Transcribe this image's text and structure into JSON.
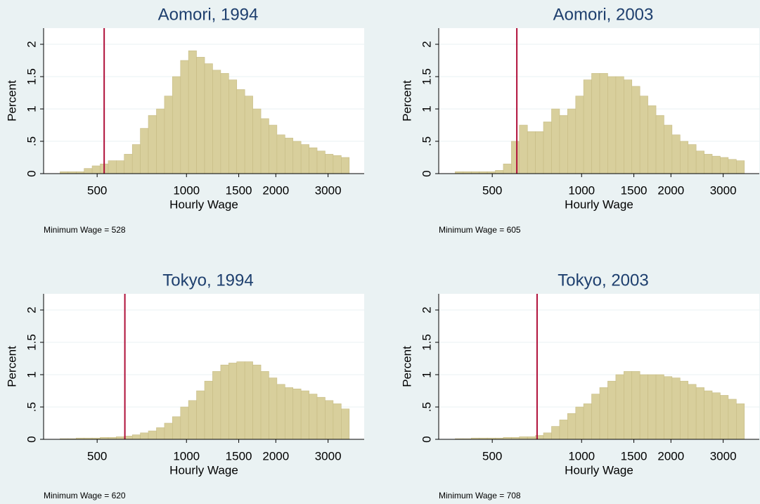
{
  "chart_data": [
    {
      "type": "histogram",
      "title": "Aomori, 1994",
      "x_label": "Hourly Wage",
      "y_label": "Percent",
      "note": "Minimum Wage = 528",
      "vline": 528,
      "xscale": "log",
      "xlim": [
        330,
        3970
      ],
      "ylim": [
        0,
        2.25
      ],
      "xticks": [
        500,
        1000,
        1500,
        2000,
        3000
      ],
      "yticks": [
        0,
        {
          "value": 0.5,
          "label": ".5"
        },
        1,
        1.5,
        2
      ],
      "grid": true,
      "color": "#d8cf9c",
      "line_color": "#b0103a",
      "bins": [
        375,
        399,
        425,
        452,
        481,
        512,
        545,
        580,
        617,
        657,
        699,
        744,
        792,
        843,
        897,
        955,
        1016,
        1081,
        1151,
        1225,
        1304,
        1388,
        1477,
        1572,
        1673,
        1781,
        1895,
        2017,
        2147,
        2285,
        2432,
        2589,
        2755,
        2932,
        3121,
        3322,
        3536
      ],
      "values": [
        0.03,
        0.03,
        0.03,
        0.08,
        0.12,
        0.15,
        0.2,
        0.2,
        0.3,
        0.45,
        0.7,
        0.9,
        1.0,
        1.2,
        1.5,
        1.75,
        1.9,
        1.8,
        1.7,
        1.6,
        1.55,
        1.45,
        1.3,
        1.2,
        1.0,
        0.85,
        0.75,
        0.6,
        0.55,
        0.5,
        0.45,
        0.4,
        0.35,
        0.3,
        0.28,
        0.25
      ]
    },
    {
      "type": "histogram",
      "title": "Aomori, 2003",
      "x_label": "Hourly Wage",
      "y_label": "Percent",
      "note": "Minimum Wage = 605",
      "vline": 605,
      "xscale": "log",
      "xlim": [
        330,
        3970
      ],
      "ylim": [
        0,
        2.25
      ],
      "xticks": [
        500,
        1000,
        1500,
        2000,
        3000
      ],
      "yticks": [
        0,
        {
          "value": 0.5,
          "label": ".5"
        },
        1,
        1.5,
        2
      ],
      "grid": true,
      "color": "#d8cf9c",
      "line_color": "#b0103a",
      "bins": [
        375,
        399,
        425,
        452,
        481,
        512,
        545,
        580,
        617,
        657,
        699,
        744,
        792,
        843,
        897,
        955,
        1016,
        1081,
        1151,
        1225,
        1304,
        1388,
        1477,
        1572,
        1673,
        1781,
        1895,
        2017,
        2147,
        2285,
        2432,
        2589,
        2755,
        2932,
        3121,
        3322,
        3536
      ],
      "values": [
        0.03,
        0.03,
        0.03,
        0.03,
        0.03,
        0.05,
        0.15,
        0.5,
        0.75,
        0.65,
        0.65,
        0.8,
        1.0,
        0.9,
        1.0,
        1.2,
        1.45,
        1.55,
        1.55,
        1.5,
        1.5,
        1.45,
        1.35,
        1.2,
        1.05,
        0.9,
        0.75,
        0.6,
        0.5,
        0.45,
        0.35,
        0.3,
        0.27,
        0.25,
        0.22,
        0.2
      ]
    },
    {
      "type": "histogram",
      "title": "Tokyo, 1994",
      "x_label": "Hourly Wage",
      "y_label": "Percent",
      "note": "Minimum Wage = 620",
      "vline": 620,
      "xscale": "log",
      "xlim": [
        330,
        3970
      ],
      "ylim": [
        0,
        2.25
      ],
      "xticks": [
        500,
        1000,
        1500,
        2000,
        3000
      ],
      "yticks": [
        0,
        {
          "value": 0.5,
          "label": ".5"
        },
        1,
        1.5,
        2
      ],
      "grid": true,
      "color": "#d8cf9c",
      "line_color": "#b0103a",
      "bins": [
        375,
        399,
        425,
        452,
        481,
        512,
        545,
        580,
        617,
        657,
        699,
        744,
        792,
        843,
        897,
        955,
        1016,
        1081,
        1151,
        1225,
        1304,
        1388,
        1477,
        1572,
        1673,
        1781,
        1895,
        2017,
        2147,
        2285,
        2432,
        2589,
        2755,
        2932,
        3121,
        3322,
        3536
      ],
      "values": [
        0.01,
        0.01,
        0.02,
        0.02,
        0.02,
        0.03,
        0.03,
        0.04,
        0.05,
        0.07,
        0.1,
        0.13,
        0.18,
        0.25,
        0.35,
        0.5,
        0.6,
        0.75,
        0.9,
        1.05,
        1.15,
        1.18,
        1.2,
        1.2,
        1.15,
        1.05,
        0.95,
        0.85,
        0.8,
        0.78,
        0.75,
        0.7,
        0.65,
        0.6,
        0.55,
        0.47
      ]
    },
    {
      "type": "histogram",
      "title": "Tokyo, 2003",
      "x_label": "Hourly Wage",
      "y_label": "Percent",
      "note": "Minimum Wage = 708",
      "vline": 708,
      "xscale": "log",
      "xlim": [
        330,
        3970
      ],
      "ylim": [
        0,
        2.25
      ],
      "xticks": [
        500,
        1000,
        1500,
        2000,
        3000
      ],
      "yticks": [
        0,
        {
          "value": 0.5,
          "label": ".5"
        },
        1,
        1.5,
        2
      ],
      "grid": true,
      "color": "#d8cf9c",
      "line_color": "#b0103a",
      "bins": [
        375,
        399,
        425,
        452,
        481,
        512,
        545,
        580,
        617,
        657,
        699,
        744,
        792,
        843,
        897,
        955,
        1016,
        1081,
        1151,
        1225,
        1304,
        1388,
        1477,
        1572,
        1673,
        1781,
        1895,
        2017,
        2147,
        2285,
        2432,
        2589,
        2755,
        2932,
        3121,
        3322,
        3536
      ],
      "values": [
        0.01,
        0.01,
        0.02,
        0.02,
        0.02,
        0.02,
        0.03,
        0.03,
        0.04,
        0.04,
        0.06,
        0.1,
        0.2,
        0.3,
        0.4,
        0.5,
        0.55,
        0.7,
        0.8,
        0.9,
        1.0,
        1.05,
        1.05,
        1.0,
        1.0,
        1.0,
        0.97,
        0.95,
        0.9,
        0.85,
        0.8,
        0.75,
        0.72,
        0.68,
        0.62,
        0.55
      ]
    }
  ]
}
